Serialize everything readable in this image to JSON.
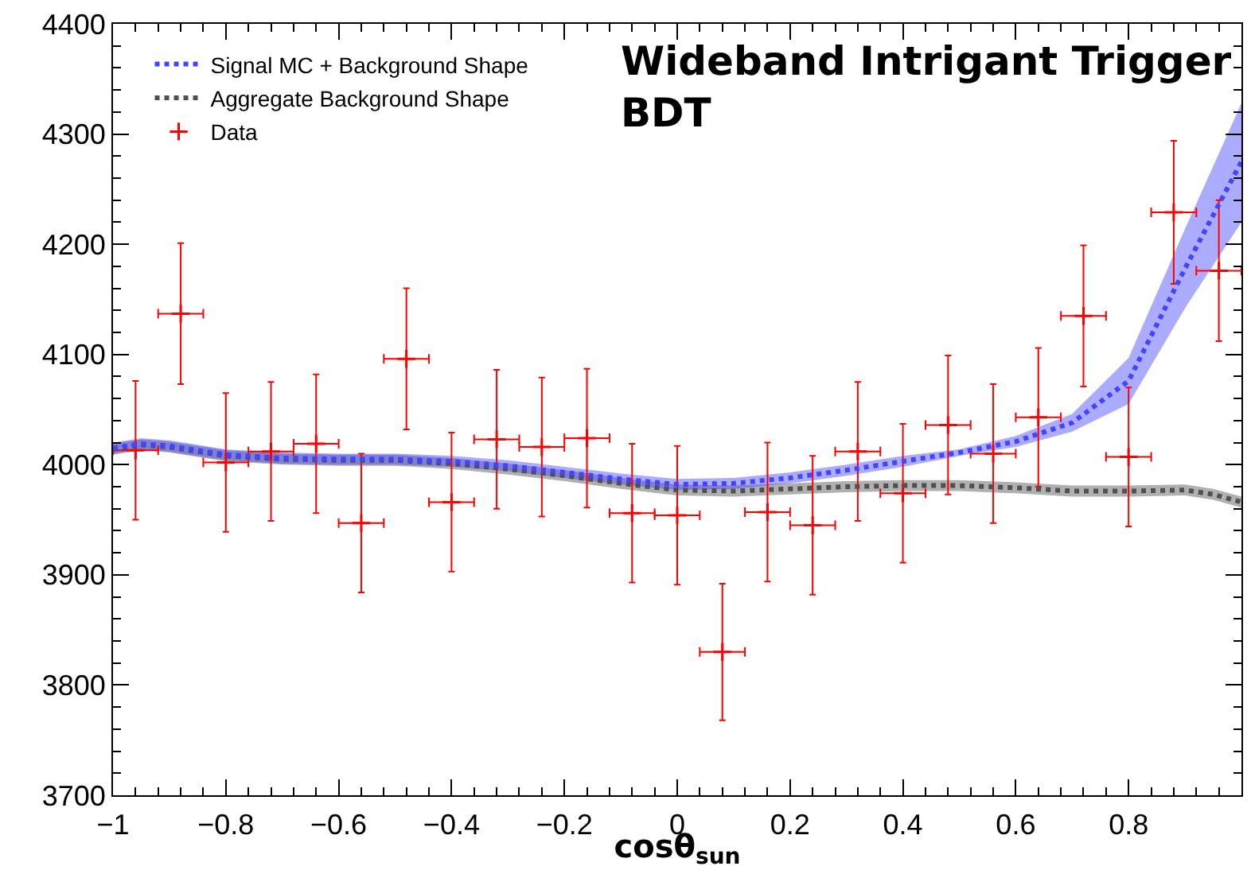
{
  "chart_data": {
    "type": "scatter",
    "title": "Wideband Intrigant Trigger\nBDT",
    "xlabel": "cosθ$_{sun}$",
    "xlim": [
      -1,
      1
    ],
    "xticks": [
      -1,
      -0.8,
      -0.6,
      -0.4,
      -0.2,
      0,
      0.2,
      0.4,
      0.6,
      0.8
    ],
    "ylim": [
      3700,
      4400
    ],
    "yticks": [
      3700,
      3800,
      3900,
      4000,
      4100,
      4200,
      4300,
      4400
    ],
    "grid": false,
    "legend": "top left",
    "series": [
      {
        "name": "Aggregate Background Shape",
        "type": "line",
        "color": "#505050",
        "line_style": "dotted",
        "x": [
          -1,
          -0.95,
          -0.9,
          -0.8,
          -0.7,
          -0.6,
          -0.5,
          -0.4,
          -0.3,
          -0.2,
          -0.1,
          0,
          0.1,
          0.2,
          0.3,
          0.4,
          0.5,
          0.6,
          0.7,
          0.8,
          0.9,
          0.95,
          1
        ],
        "values": [
          4014,
          4018,
          4016,
          4008,
          4005,
          4004,
          4004,
          4001,
          3996,
          3990,
          3983,
          3977,
          3976,
          3978,
          3980,
          3981,
          3981,
          3979,
          3976,
          3976,
          3977,
          3973,
          3966
        ],
        "lower": [
          4009,
          4013,
          4011,
          4003,
          4000,
          3999,
          3999,
          3996,
          3991,
          3985,
          3978,
          3972,
          3971,
          3973,
          3975,
          3976,
          3976,
          3974,
          3971,
          3971,
          3972,
          3968,
          3961
        ],
        "upper": [
          4019,
          4023,
          4021,
          4013,
          4010,
          4009,
          4009,
          4006,
          4001,
          3995,
          3988,
          3982,
          3981,
          3983,
          3985,
          3986,
          3986,
          3984,
          3981,
          3981,
          3982,
          3978,
          3971
        ]
      },
      {
        "name": "Signal MC + Background Shape",
        "type": "line",
        "color": "#4444ff",
        "line_style": "dotted",
        "x": [
          -1,
          -0.95,
          -0.9,
          -0.8,
          -0.7,
          -0.6,
          -0.5,
          -0.4,
          -0.3,
          -0.2,
          -0.1,
          0,
          0.1,
          0.2,
          0.3,
          0.4,
          0.5,
          0.6,
          0.7,
          0.8,
          0.9,
          1
        ],
        "values": [
          4015,
          4019,
          4017,
          4009,
          4006,
          4005,
          4005,
          4003,
          3999,
          3993,
          3987,
          3982,
          3983,
          3988,
          3995,
          4003,
          4011,
          4021,
          4038,
          4076,
          4178,
          4275
        ],
        "lower": [
          4010,
          4014,
          4012,
          4004,
          4001,
          4000,
          4000,
          3998,
          3994,
          3988,
          3982,
          3977,
          3978,
          3983,
          3990,
          3998,
          4008,
          4016,
          4030,
          4055,
          4142,
          4220
        ],
        "upper": [
          4020,
          4024,
          4022,
          4014,
          4011,
          4010,
          4010,
          4008,
          4004,
          3998,
          3992,
          3987,
          3988,
          3993,
          4000,
          4008,
          4014,
          4026,
          4046,
          4097,
          4214,
          4328
        ]
      },
      {
        "name": "Data",
        "color": "#ff0000",
        "marker": "cross",
        "x": [
          -0.96,
          -0.88,
          -0.8,
          -0.72,
          -0.64,
          -0.56,
          -0.48,
          -0.4,
          -0.32,
          -0.24,
          -0.16,
          -0.08,
          0,
          0.08,
          0.16,
          0.24,
          0.32,
          0.4,
          0.48,
          0.56,
          0.64,
          0.72,
          0.8,
          0.88,
          0.96
        ],
        "values": [
          4013,
          4137,
          4002,
          4012,
          4019,
          3947,
          4096,
          3966,
          4023,
          4016,
          4024,
          3956,
          3954,
          3830,
          3957,
          3945,
          4012,
          3974,
          4036,
          4010,
          4043,
          4135,
          4007,
          4229,
          4176
        ],
        "errors": [
          63,
          64,
          63,
          63,
          63,
          63,
          64,
          63,
          63,
          63,
          63,
          63,
          63,
          62,
          63,
          63,
          63,
          63,
          63,
          63,
          63,
          64,
          63,
          65,
          64
        ],
        "xerrors": [
          0.04,
          0.04,
          0.04,
          0.04,
          0.04,
          0.04,
          0.04,
          0.04,
          0.04,
          0.04,
          0.04,
          0.04,
          0.04,
          0.04,
          0.04,
          0.04,
          0.04,
          0.04,
          0.04,
          0.04,
          0.04,
          0.04,
          0.04,
          0.04,
          0.04
        ]
      }
    ]
  }
}
